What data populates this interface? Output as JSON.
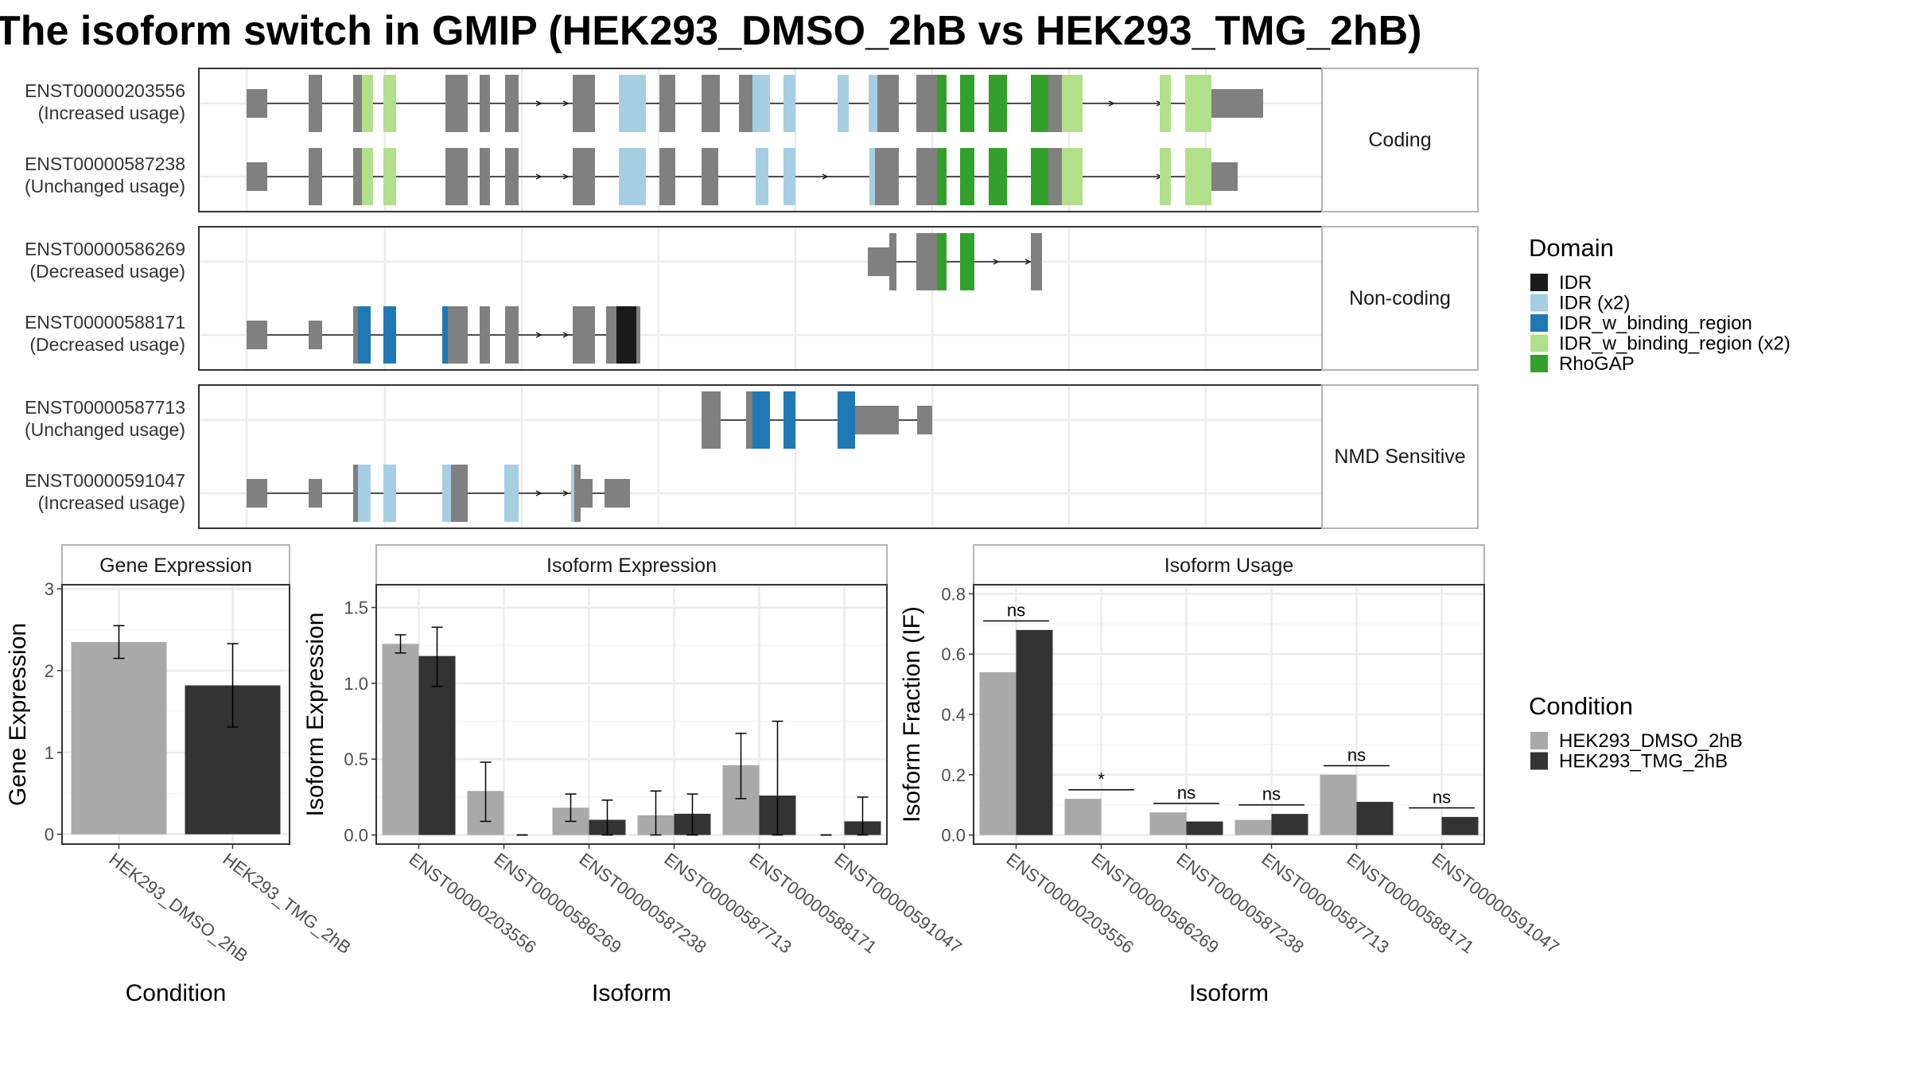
{
  "title": "The isoform switch in GMIP (HEK293_DMSO_2hB vs HEK293_TMG_2hB)",
  "colors": {
    "exon": "#808080",
    "IDR": "#1a1a1a",
    "IDR (x2)": "#a6cee3",
    "IDR_w_binding_region": "#1f78b4",
    "IDR_w_binding_region (x2)": "#b2df8a",
    "RhoGAP": "#33a02c",
    "HEK293_DMSO_2hB": "#a9a9a9",
    "HEK293_TMG_2hB": "#333333"
  },
  "transcript_panel": {
    "groups": [
      {
        "label": "Coding",
        "isoforms": [
          {
            "id": "ENST00000203556",
            "usage": "(Increased usage)"
          },
          {
            "id": "ENST00000587238",
            "usage": "(Unchanged usage)"
          }
        ]
      },
      {
        "label": "Non-coding",
        "isoforms": [
          {
            "id": "ENST00000586269",
            "usage": "(Decreased usage)"
          },
          {
            "id": "ENST00000588171",
            "usage": "(Decreased usage)"
          }
        ]
      },
      {
        "label": "NMD Sensitive",
        "isoforms": [
          {
            "id": "ENST00000587713",
            "usage": "(Unchanged usage)"
          },
          {
            "id": "ENST00000591047",
            "usage": "(Increased usage)"
          }
        ]
      }
    ]
  },
  "domain_legend": {
    "title": "Domain",
    "items": [
      "IDR",
      "IDR (x2)",
      "IDR_w_binding_region",
      "IDR_w_binding_region (x2)",
      "RhoGAP"
    ]
  },
  "condition_legend": {
    "title": "Condition",
    "items": [
      "HEK293_DMSO_2hB",
      "HEK293_TMG_2hB"
    ]
  },
  "chart_data": [
    {
      "type": "bar",
      "title": "Gene Expression",
      "xlabel": "Condition",
      "ylabel": "Gene Expression",
      "categories": [
        "HEK293_DMSO_2hB",
        "HEK293_TMG_2hB"
      ],
      "values": [
        2.35,
        1.82
      ],
      "error_low": [
        2.15,
        1.31
      ],
      "error_high": [
        2.55,
        2.33
      ],
      "yticks": [
        0,
        1,
        2,
        3
      ],
      "ylim": [
        -0.12,
        3.05
      ]
    },
    {
      "type": "bar",
      "title": "Isoform Expression",
      "xlabel": "Isoform",
      "ylabel": "Isoform Expression",
      "categories": [
        "ENST00000203556",
        "ENST00000586269",
        "ENST00000587238",
        "ENST00000587713",
        "ENST00000588171",
        "ENST00000591047"
      ],
      "series": [
        {
          "name": "HEK293_DMSO_2hB",
          "values": [
            1.26,
            0.29,
            0.18,
            0.13,
            0.46,
            0.0
          ],
          "error_low": [
            1.2,
            0.09,
            0.09,
            0.0,
            0.24,
            0.0
          ],
          "error_high": [
            1.32,
            0.48,
            0.27,
            0.29,
            0.67,
            0.0
          ]
        },
        {
          "name": "HEK293_TMG_2hB",
          "values": [
            1.18,
            0.0,
            0.1,
            0.14,
            0.26,
            0.09
          ],
          "error_low": [
            0.98,
            0.0,
            0.0,
            0.0,
            0.0,
            0.0
          ],
          "error_high": [
            1.37,
            0.0,
            0.23,
            0.27,
            0.75,
            0.25
          ]
        }
      ],
      "yticks": [
        0.0,
        0.5,
        1.0,
        1.5
      ],
      "ylim": [
        -0.06,
        1.65
      ]
    },
    {
      "type": "bar",
      "title": "Isoform Usage",
      "xlabel": "Isoform",
      "ylabel": "Isoform Fraction (IF)",
      "categories": [
        "ENST00000203556",
        "ENST00000586269",
        "ENST00000587238",
        "ENST00000587713",
        "ENST00000588171",
        "ENST00000591047"
      ],
      "series": [
        {
          "name": "HEK293_DMSO_2hB",
          "values": [
            0.54,
            0.12,
            0.075,
            0.05,
            0.2,
            0.0
          ]
        },
        {
          "name": "HEK293_TMG_2hB",
          "values": [
            0.68,
            0.0,
            0.045,
            0.07,
            0.11,
            0.06
          ]
        }
      ],
      "significance": [
        "ns",
        "*",
        "ns",
        "ns",
        "ns",
        "ns"
      ],
      "yticks": [
        0.0,
        0.2,
        0.4,
        0.6,
        0.8
      ],
      "ylim": [
        -0.03,
        0.83
      ]
    }
  ]
}
